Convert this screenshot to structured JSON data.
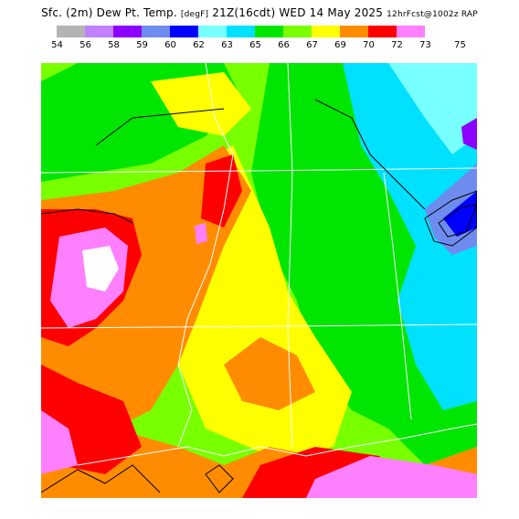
{
  "title": {
    "main": "Sfc. (2m) Dew Pt. Temp.",
    "units": "[degF]",
    "valid": "21Z(16cdt) WED 14 May 2025",
    "run": "12hrFcst@1002z RAP"
  },
  "legend": [
    {
      "label": "54",
      "color": "#b4b4b4"
    },
    {
      "label": "56",
      "color": "#c080ff"
    },
    {
      "label": "58",
      "color": "#8c00ff"
    },
    {
      "label": "59",
      "color": "#6e8cf0"
    },
    {
      "label": "60",
      "color": "#0000ff"
    },
    {
      "label": "62",
      "color": "#78ffff"
    },
    {
      "label": "63",
      "color": "#00e0ff"
    },
    {
      "label": "65",
      "color": "#00e600"
    },
    {
      "label": "66",
      "color": "#78ff00"
    },
    {
      "label": "67",
      "color": "#ffff00"
    },
    {
      "label": "69",
      "color": "#ff8c00"
    },
    {
      "label": "70",
      "color": "#ff0000"
    },
    {
      "label": "72",
      "color": "#ff80ff"
    },
    {
      "label": "73",
      "color": "#ffffff"
    }
  ],
  "legend_last_label": "75"
}
